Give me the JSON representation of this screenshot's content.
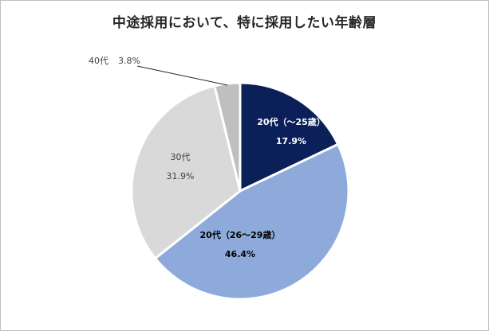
{
  "chart_data": {
    "type": "pie",
    "title": "中途採用において、特に採用したい年齢層",
    "slices": [
      {
        "label": "20代（〜25歳）",
        "value": 17.9,
        "value_text": "17.9%",
        "color": "#0b2059"
      },
      {
        "label": "20代（26〜29歳）",
        "value": 46.4,
        "value_text": "46.4%",
        "color": "#8eaadb"
      },
      {
        "label": "30代",
        "value": 31.9,
        "value_text": "31.9%",
        "color": "#d9d9d9"
      },
      {
        "label": "40代",
        "value": 3.8,
        "value_text": "3.8%",
        "color": "#bfbfbf"
      }
    ],
    "legend": "none",
    "start_angle": "top, clockwise"
  }
}
